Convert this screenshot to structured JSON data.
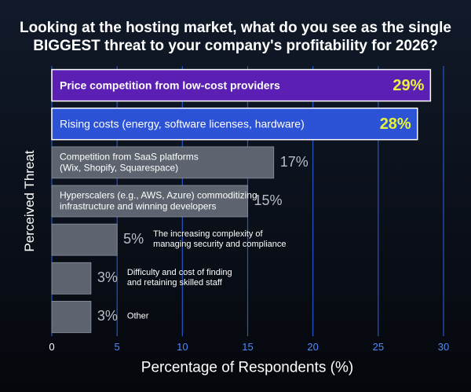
{
  "chart_data": {
    "type": "hbar",
    "title": "Looking at the hosting market, what do you see as the single\nBIGGEST threat to your company's profitability for 2026?",
    "xlabel": "Percentage of Respondents (%)",
    "ylabel": "Perceived Threat",
    "categories": [
      "Price competition from low-cost providers",
      "Rising costs (energy, software licenses, hardware)",
      "Competition from SaaS platforms\n(Wix, Shopify, Squarespace)",
      "Hyperscalers (e.g., AWS, Azure) commoditizing\ninfrastructure and winning developers",
      "The increasing complexity of\nmanaging security and compliance",
      "Difficulty and cost of finding\nand retaining skilled staff",
      "Other"
    ],
    "values": [
      29,
      28,
      17,
      15,
      5,
      3,
      3
    ],
    "value_labels": [
      "29%",
      "28%",
      "17%",
      "15%",
      "5%",
      "3%",
      "3%"
    ],
    "colors": [
      "#5b1fb4",
      "#2c52d6",
      "#5d6470",
      "#5d6470",
      "#5d6470",
      "#5d6470",
      "#5d6470"
    ],
    "highlight_label_color": "#e6f53c",
    "xlim": [
      0,
      30
    ],
    "xticks": [
      0,
      5,
      10,
      15,
      20,
      25,
      30
    ],
    "grid": true
  }
}
